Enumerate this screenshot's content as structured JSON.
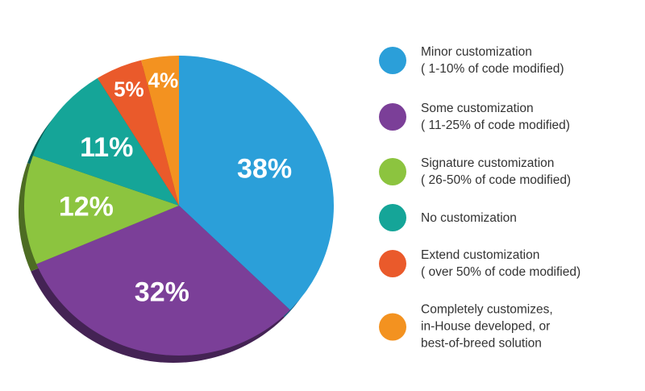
{
  "chart_data": {
    "type": "pie",
    "series": [
      {
        "name": "Minor customization\n( 1-10% of code modified)",
        "color": "#2b9fd9",
        "values": [
          38
        ],
        "value_labels": [
          "38%"
        ]
      },
      {
        "name": "Some customization\n( 11-25% of code modified)",
        "color": "#7b3f98",
        "values": [
          32
        ],
        "value_labels": [
          "32%"
        ]
      },
      {
        "name": "Signature customization\n( 26-50% of code modified)",
        "color": "#8cc43f",
        "values": [
          12
        ],
        "value_labels": [
          "12%"
        ]
      },
      {
        "name": "No customization",
        "color": "#15a598",
        "values": [
          11
        ],
        "value_labels": [
          "11%"
        ]
      },
      {
        "name": "Extend customization\n( over 50% of code modified)",
        "color": "#ea5a2b",
        "values": [
          5
        ],
        "value_labels": [
          "5%"
        ]
      },
      {
        "name": "Completely  customizes,\nin-House developed, or\nbest-of-breed solution",
        "color": "#f39220",
        "values": [
          4
        ],
        "value_labels": [
          "4%"
        ]
      }
    ]
  }
}
